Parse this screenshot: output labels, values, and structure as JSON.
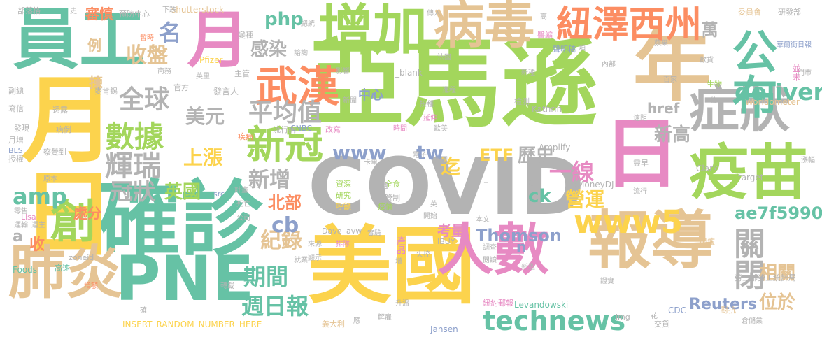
{
  "cloud": {
    "colors": {
      "yellow": "#FCD34D",
      "green": "#A3D65C",
      "teal": "#66C2A5",
      "tan": "#E5C494",
      "pink": "#E78AC3",
      "gray": "#B3B3B3",
      "blue": "#8DA0CB",
      "orange": "#FC8D62"
    },
    "words": [
      {
        "text": "亞馬遜",
        "color": "green"
      },
      {
        "text": "COVID",
        "color": "gray"
      },
      {
        "text": "美國",
        "color": "yellow"
      },
      {
        "text": "確診",
        "color": "teal"
      },
      {
        "text": "報導",
        "color": "tan"
      },
      {
        "text": "月日",
        "color": "yellow"
      },
      {
        "text": "員工",
        "color": "teal"
      },
      {
        "text": "月",
        "color": "pink"
      },
      {
        "text": "年",
        "color": "tan"
      },
      {
        "text": "日",
        "color": "pink"
      },
      {
        "text": "疫苗",
        "color": "green"
      },
      {
        "text": "肺炎",
        "color": "tan"
      },
      {
        "text": "PNE",
        "color": "teal"
      },
      {
        "text": "增加",
        "color": "green"
      },
      {
        "text": "病毒",
        "color": "tan"
      },
      {
        "text": "人數",
        "color": "pink"
      },
      {
        "text": "症狀",
        "color": "gray"
      },
      {
        "text": "公布",
        "color": "teal"
      },
      {
        "text": "紐澤西州",
        "color": "orange"
      },
      {
        "text": "創",
        "color": "green"
      },
      {
        "text": "武漢",
        "color": "orange"
      },
      {
        "text": "新冠",
        "color": "green"
      },
      {
        "text": "www5",
        "color": "yellow"
      },
      {
        "text": "technews",
        "color": "teal"
      },
      {
        "text": "關閉",
        "color": "gray"
      },
      {
        "text": "delivery",
        "color": "teal"
      },
      {
        "text": "數據",
        "color": "green"
      },
      {
        "text": "輝瑞",
        "color": "gray"
      },
      {
        "text": "平均值",
        "color": "gray"
      },
      {
        "text": "全球",
        "color": "gray"
      },
      {
        "text": "收盤",
        "color": "tan"
      },
      {
        "text": "週日報",
        "color": "teal"
      },
      {
        "text": "期間",
        "color": "teal"
      },
      {
        "text": "紀錄",
        "color": "tan"
      },
      {
        "text": "名",
        "color": "blue"
      },
      {
        "text": "www",
        "color": "blue"
      },
      {
        "text": "tw",
        "color": "blue"
      },
      {
        "text": "php",
        "color": "teal"
      },
      {
        "text": "感染",
        "color": "gray"
      },
      {
        "text": "美元",
        "color": "gray"
      },
      {
        "text": "上漲",
        "color": "yellow"
      },
      {
        "text": "冠狀",
        "color": "gray"
      },
      {
        "text": "新增",
        "color": "gray"
      },
      {
        "text": "英國",
        "color": "green"
      },
      {
        "text": "amp",
        "color": "teal"
      },
      {
        "text": "cb",
        "color": "blue"
      },
      {
        "text": "ETF",
        "color": "yellow"
      },
      {
        "text": "歷史",
        "color": "gray"
      },
      {
        "text": "一線",
        "color": "pink"
      },
      {
        "text": "營運",
        "color": "yellow"
      },
      {
        "text": "新高",
        "color": "gray"
      },
      {
        "text": "ae7f5990",
        "color": "teal"
      },
      {
        "text": "Thomson",
        "color": "blue"
      },
      {
        "text": "Reuters",
        "color": "blue"
      },
      {
        "text": "位於",
        "color": "tan"
      },
      {
        "text": "相關",
        "color": "tan"
      },
      {
        "text": "ck",
        "color": "teal"
      },
      {
        "text": "迄",
        "color": "yellow"
      },
      {
        "text": "北部",
        "color": "orange"
      },
      {
        "text": "萬",
        "color": "gray"
      },
      {
        "text": "處分",
        "color": "orange"
      },
      {
        "text": "考量",
        "color": "pink"
      },
      {
        "text": "href",
        "color": "gray"
      },
      {
        "text": "審慎",
        "color": "orange"
      },
      {
        "text": "例",
        "color": "tan"
      },
      {
        "text": "揀",
        "color": "tan"
      },
      {
        "text": "收",
        "color": "orange"
      },
      {
        "text": "a",
        "color": "gray"
      },
      {
        "text": "中心",
        "color": "blue"
      },
      {
        "text": "n",
        "color": "blue"
      },
      {
        "text": "產品",
        "color": "pink"
      },
      {
        "text": "資深",
        "color": "green"
      },
      {
        "text": "研究",
        "color": "green"
      },
      {
        "text": "全食",
        "color": "green"
      },
      {
        "text": "管制",
        "color": "gray"
      },
      {
        "text": "呼籲",
        "color": "yellow"
      },
      {
        "text": "疫情",
        "color": "green"
      },
      {
        "text": "shutterstock",
        "color": "tan"
      },
      {
        "text": "Pfizer",
        "color": "yellow"
      },
      {
        "text": "Worldometer",
        "color": "tan"
      },
      {
        "text": "Kathrin",
        "color": "gray"
      },
      {
        "text": "Amplify",
        "color": "gray"
      },
      {
        "text": "MoneyDJ",
        "color": "gray"
      },
      {
        "text": "Clark",
        "color": "gray"
      },
      {
        "text": "target",
        "color": "gray"
      },
      {
        "text": "IBUY",
        "color": "gray"
      },
      {
        "text": "Dave",
        "color": "gray"
      },
      {
        "text": "avw",
        "color": "gray"
      },
      {
        "text": "Foods",
        "color": "teal"
      },
      {
        "text": "zoneid",
        "color": "gray"
      },
      {
        "text": "Lisa",
        "color": "pink"
      },
      {
        "text": "Jansen",
        "color": "blue"
      },
      {
        "text": "Levandowski",
        "color": "teal"
      },
      {
        "text": "INSERT_RANDOM_NUMBER_HERE",
        "color": "yellow"
      },
      {
        "text": "CNBC",
        "color": "blue"
      },
      {
        "text": "BLS",
        "color": "blue"
      },
      {
        "text": "CDC",
        "color": "blue"
      },
      {
        "text": "_blank",
        "color": "gray"
      },
      {
        "text": "src",
        "color": "blue"
      },
      {
        "text": "img",
        "color": "gray"
      },
      {
        "text": "部落格",
        "color": "gray"
      },
      {
        "text": "預防中心",
        "color": "gray"
      },
      {
        "text": "下跌",
        "color": "gray"
      },
      {
        "text": "委員會",
        "color": "tan"
      },
      {
        "text": "研發部",
        "color": "gray"
      },
      {
        "text": "華爾街日報",
        "color": "blue"
      },
      {
        "text": "勞工部勞工統計局",
        "color": "gray"
      },
      {
        "text": "紐約郵報",
        "color": "pink"
      },
      {
        "text": "聲明稿",
        "color": "blue"
      },
      {
        "text": "麥肯錫",
        "color": "gray"
      },
      {
        "text": "發言人",
        "color": "gray"
      },
      {
        "text": "流行病",
        "color": "gray"
      },
      {
        "text": "倉儲業",
        "color": "gray"
      },
      {
        "text": "義大利",
        "color": "tan"
      },
      {
        "text": "高速",
        "color": "teal"
      },
      {
        "text": "就業",
        "color": "gray"
      },
      {
        "text": "解雇",
        "color": "gray"
      },
      {
        "text": "升溫",
        "color": "gray"
      },
      {
        "text": "疾病",
        "color": "orange"
      },
      {
        "text": "總統",
        "color": "gray"
      },
      {
        "text": "主管",
        "color": "gray"
      },
      {
        "text": "官方",
        "color": "gray"
      },
      {
        "text": "副總",
        "color": "gray"
      },
      {
        "text": "寫信",
        "color": "gray"
      },
      {
        "text": "發現",
        "color": "gray"
      },
      {
        "text": "月增",
        "color": "gray"
      },
      {
        "text": "授權",
        "color": "gray"
      },
      {
        "text": "察覺到",
        "color": "gray"
      },
      {
        "text": "病例",
        "color": "gray"
      },
      {
        "text": "透露",
        "color": "gray"
      },
      {
        "text": "原本",
        "color": "gray"
      },
      {
        "text": "零售",
        "color": "gray"
      },
      {
        "text": "運輸",
        "color": "gray"
      },
      {
        "text": "運主",
        "color": "gray"
      },
      {
        "text": "來源",
        "color": "gray"
      },
      {
        "text": "顯示",
        "color": "gray"
      },
      {
        "text": "排隊",
        "color": "pink"
      },
      {
        "text": "實驗",
        "color": "gray"
      },
      {
        "text": "開始",
        "color": "gray"
      },
      {
        "text": "影響",
        "color": "gray"
      },
      {
        "text": "接種",
        "color": "gray"
      },
      {
        "text": "延伸",
        "color": "pink"
      },
      {
        "text": "改寫",
        "color": "pink"
      },
      {
        "text": "時間",
        "color": "pink"
      },
      {
        "text": "歐美",
        "color": "gray"
      },
      {
        "text": "電子",
        "color": "gray"
      },
      {
        "text": "首圖",
        "color": "gray"
      },
      {
        "text": "卡車",
        "color": "gray"
      },
      {
        "text": "新聞",
        "color": "gray"
      },
      {
        "text": "進程",
        "color": "gray"
      },
      {
        "text": "法國",
        "color": "gray"
      },
      {
        "text": "檢測",
        "color": "gray"
      },
      {
        "text": "新種",
        "color": "gray"
      },
      {
        "text": "生物",
        "color": "green"
      },
      {
        "text": "百家",
        "color": "gray"
      },
      {
        "text": "歐貨",
        "color": "gray"
      },
      {
        "text": "內部",
        "color": "gray"
      },
      {
        "text": "蘋果",
        "color": "gray"
      },
      {
        "text": "變種",
        "color": "gray"
      },
      {
        "text": "暫時",
        "color": "orange"
      },
      {
        "text": "商務",
        "color": "gray"
      },
      {
        "text": "英里",
        "color": "gray"
      },
      {
        "text": "諮詢",
        "color": "gray"
      },
      {
        "text": "傳入",
        "color": "gray"
      },
      {
        "text": "計畫",
        "color": "gray"
      },
      {
        "text": "死亡",
        "color": "gray"
      },
      {
        "text": "公司",
        "color": "gray"
      },
      {
        "text": "本文",
        "color": "gray"
      },
      {
        "text": "證實",
        "color": "gray"
      },
      {
        "text": "出爐",
        "color": "tan"
      },
      {
        "text": "對抗",
        "color": "tan"
      },
      {
        "text": "交貨",
        "color": "gray"
      },
      {
        "text": "漲幅",
        "color": "gray"
      },
      {
        "text": "增額",
        "color": "orange"
      },
      {
        "text": "調查",
        "color": "gray"
      },
      {
        "text": "閱讀",
        "color": "gray"
      },
      {
        "text": "失控",
        "color": "gray"
      },
      {
        "text": "新型",
        "color": "gray"
      },
      {
        "text": "流行",
        "color": "gray"
      },
      {
        "text": "前",
        "color": "gray"
      },
      {
        "text": "初",
        "color": "gray"
      },
      {
        "text": "英",
        "color": "gray"
      },
      {
        "text": "應",
        "color": "gray"
      },
      {
        "text": "增",
        "color": "gray"
      },
      {
        "text": "高",
        "color": "gray"
      },
      {
        "text": "項",
        "color": "gray"
      },
      {
        "text": "位",
        "color": "gray"
      },
      {
        "text": "醫縮",
        "color": "pink"
      },
      {
        "text": "門市",
        "color": "gray"
      },
      {
        "text": "並未",
        "color": "pink"
      },
      {
        "text": "靈早",
        "color": "gray"
      },
      {
        "text": "遠距",
        "color": "gray"
      },
      {
        "text": "轉載",
        "color": "gray"
      },
      {
        "text": "遇",
        "color": "gray"
      },
      {
        "text": "史",
        "color": "gray"
      },
      {
        "text": "花",
        "color": "gray"
      },
      {
        "text": "確",
        "color": "gray"
      },
      {
        "text": "三",
        "color": "gray"
      }
    ]
  }
}
